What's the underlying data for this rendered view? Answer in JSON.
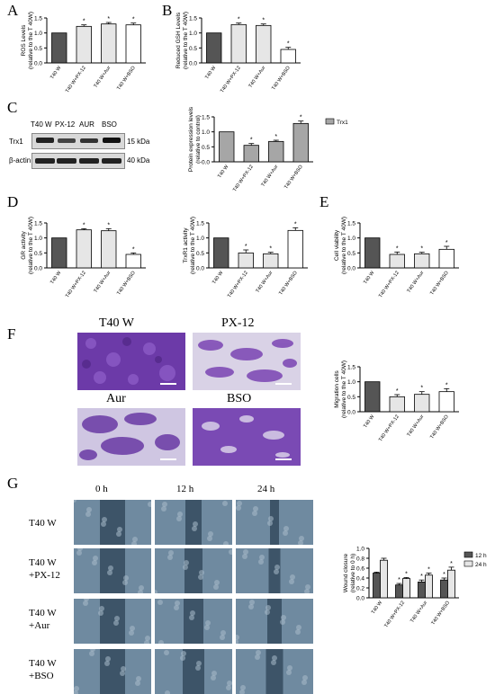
{
  "letters": {
    "A": "A",
    "B": "B",
    "C": "C",
    "D": "D",
    "E": "E",
    "F": "F",
    "G": "G"
  },
  "colors": {
    "dark": "#555555",
    "light": "#e6e6e6",
    "mid": "#a6a6a6",
    "white": "#ffffff",
    "photo_purple": "#7b45b3",
    "photo_blue": "#5e7990"
  },
  "charts": {
    "ros": {
      "type": "bar",
      "ylabel1": "ROS Levels",
      "ylabel2": "(relative to the T 40W)",
      "ylim": [
        0,
        1.5
      ],
      "yticks": [
        "0.0",
        "0.5",
        "1.0",
        "1.5"
      ],
      "categories": [
        "T40 W",
        "T40 W+PX-12",
        "T40 W+Aur",
        "T40 W+BSO"
      ],
      "values": [
        1.0,
        1.22,
        1.3,
        1.27
      ],
      "errors": [
        0.0,
        0.05,
        0.05,
        0.06
      ],
      "stars": [
        "",
        "*",
        "*",
        "*"
      ]
    },
    "gsh": {
      "type": "bar",
      "ylabel1": "Reduced GSH Levels",
      "ylabel2": "(relative to the T 40W)",
      "ylim": [
        0,
        1.5
      ],
      "yticks": [
        "0.0",
        "0.5",
        "1.0",
        "1.5"
      ],
      "categories": [
        "T40 W",
        "T40 W+PX-12",
        "T40 W+Aur",
        "T40 W+BSO"
      ],
      "values": [
        1.0,
        1.28,
        1.25,
        0.45
      ],
      "errors": [
        0.0,
        0.05,
        0.05,
        0.07
      ],
      "stars": [
        "",
        "*",
        "*",
        "*"
      ]
    },
    "trx1": {
      "type": "bar",
      "ylabel1": "Protein expression levels",
      "ylabel2": "(relative to control)",
      "ylim": [
        0,
        1.5
      ],
      "yticks": [
        "0.0",
        "0.5",
        "1.0",
        "1.5"
      ],
      "legend": "Trx1",
      "categories": [
        "T40 W",
        "T40 W+PX-12",
        "T40 W+Aur",
        "T40 W+BSO"
      ],
      "values": [
        1.0,
        0.55,
        0.68,
        1.28
      ],
      "errors": [
        0.0,
        0.06,
        0.04,
        0.08
      ],
      "stars": [
        "",
        "*",
        "*",
        "*"
      ]
    },
    "gr": {
      "type": "bar",
      "ylabel1": "GR activity",
      "ylabel2": "(relative to the T 40W)",
      "ylim": [
        0,
        1.5
      ],
      "yticks": [
        "0.0",
        "0.5",
        "1.0",
        "1.5"
      ],
      "categories": [
        "T40 W",
        "T40 W+PX-12",
        "T40 W+Aur",
        "T40 W+BSO"
      ],
      "values": [
        1.0,
        1.27,
        1.24,
        0.45
      ],
      "errors": [
        0.0,
        0.04,
        0.07,
        0.05
      ],
      "stars": [
        "",
        "*",
        "*",
        "*"
      ]
    },
    "trxr": {
      "type": "bar",
      "ylabel1": "TrxR1 activity",
      "ylabel2": "(relative to the T 40W)",
      "ylim": [
        0,
        1.5
      ],
      "yticks": [
        "0.0",
        "0.5",
        "1.0",
        "1.5"
      ],
      "categories": [
        "T40 W",
        "T40 W+PX-12",
        "T40 W+Aur",
        "T40 W+BSO"
      ],
      "values": [
        1.0,
        0.5,
        0.47,
        1.25
      ],
      "errors": [
        0.0,
        0.1,
        0.05,
        0.09
      ],
      "stars": [
        "",
        "*",
        "*",
        "*"
      ]
    },
    "viab": {
      "type": "bar",
      "ylabel1": "Cell viability",
      "ylabel2": "(relative to the T 40W)",
      "ylim": [
        0,
        1.5
      ],
      "yticks": [
        "0.0",
        "0.5",
        "1.0",
        "1.5"
      ],
      "categories": [
        "T40 W",
        "T40 W+PX-12",
        "T40 W+Aur",
        "T40 W+BSO"
      ],
      "values": [
        1.0,
        0.45,
        0.47,
        0.62
      ],
      "errors": [
        0.0,
        0.08,
        0.05,
        0.1
      ],
      "stars": [
        "",
        "*",
        "*",
        "*"
      ]
    },
    "migr": {
      "type": "bar",
      "ylabel1": "Migration cells",
      "ylabel2": "(relative to the T 40W)",
      "ylim": [
        0,
        1.5
      ],
      "yticks": [
        "0.0",
        "0.5",
        "1.0",
        "1.5"
      ],
      "categories": [
        "T40 W",
        "T40 W+PX-12",
        "T40 W+Aur",
        "T40 W+BSO"
      ],
      "values": [
        1.0,
        0.5,
        0.58,
        0.67
      ],
      "errors": [
        0.0,
        0.07,
        0.09,
        0.1
      ],
      "stars": [
        "",
        "*",
        "*",
        "*"
      ]
    },
    "wound": {
      "type": "bar",
      "ylabel1": "Wound closure",
      "ylabel2": "(relative to 0 h)",
      "ylim": [
        0,
        1.0
      ],
      "yticks": [
        "0.0",
        "0.2",
        "0.4",
        "0.6",
        "0.8",
        "1.0"
      ],
      "categories": [
        "T40 W",
        "T40 W+PX-12",
        "T40 W+Aur",
        "T40 W+BSO"
      ],
      "series": [
        {
          "name": "12 h",
          "values": [
            0.5,
            0.26,
            0.32,
            0.36
          ],
          "errors": [
            0.02,
            0.03,
            0.04,
            0.04
          ]
        },
        {
          "name": "24 h",
          "values": [
            0.76,
            0.39,
            0.46,
            0.56
          ],
          "errors": [
            0.04,
            0.02,
            0.04,
            0.06
          ]
        }
      ],
      "stars": [
        [
          "",
          ""
        ],
        [
          "*",
          "*"
        ],
        [
          "*",
          "*"
        ],
        [
          "*",
          "*"
        ]
      ]
    }
  },
  "blot": {
    "lanes": [
      "T40 W",
      "PX-12",
      "AUR",
      "BSO"
    ],
    "rows": [
      "Trx1",
      "β-actin"
    ],
    "kda": [
      "15 kDa",
      "40 kDa"
    ]
  },
  "migration_images": {
    "labels": [
      "T40 W",
      "PX-12",
      "Aur",
      "BSO"
    ]
  },
  "wound_images": {
    "times": [
      "0 h",
      "12 h",
      "24 h"
    ],
    "rows": [
      {
        "l1": "T40 W",
        "l2": ""
      },
      {
        "l1": "T40 W",
        "l2": "+PX-12"
      },
      {
        "l1": "T40 W",
        "l2": "+Aur"
      },
      {
        "l1": "T40 W",
        "l2": "+BSO"
      }
    ]
  }
}
